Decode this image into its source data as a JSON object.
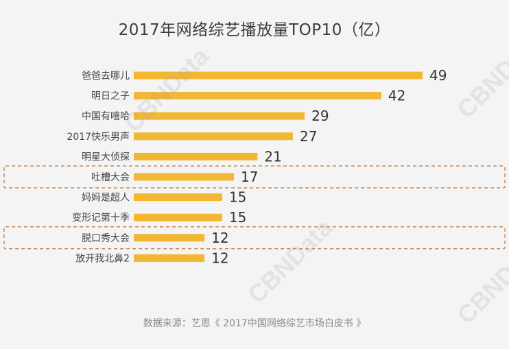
{
  "chart_data": {
    "type": "bar",
    "orientation": "horizontal",
    "title": "2017年网络综艺播放量TOP10（亿）",
    "categories": [
      "爸爸去哪儿",
      "明日之子",
      "中国有嘻哈",
      "2017快乐男声",
      "明星大侦探",
      "吐槽大会",
      "妈妈是超人",
      "变形记第十季",
      "脱口秀大会",
      "放开我北鼻2"
    ],
    "values": [
      49,
      42,
      29,
      27,
      21,
      17,
      15,
      15,
      12,
      12
    ],
    "highlighted": [
      "吐槽大会",
      "脱口秀大会"
    ],
    "xlim": [
      0,
      49
    ],
    "xlabel": "",
    "ylabel": "",
    "grid": false,
    "bar_color": "#f2b733",
    "highlight_color": "#c78a55"
  },
  "source_text": "数据来源：艺恩《 2017中国网络综艺市场白皮书 》",
  "watermark_text": "CBNData"
}
